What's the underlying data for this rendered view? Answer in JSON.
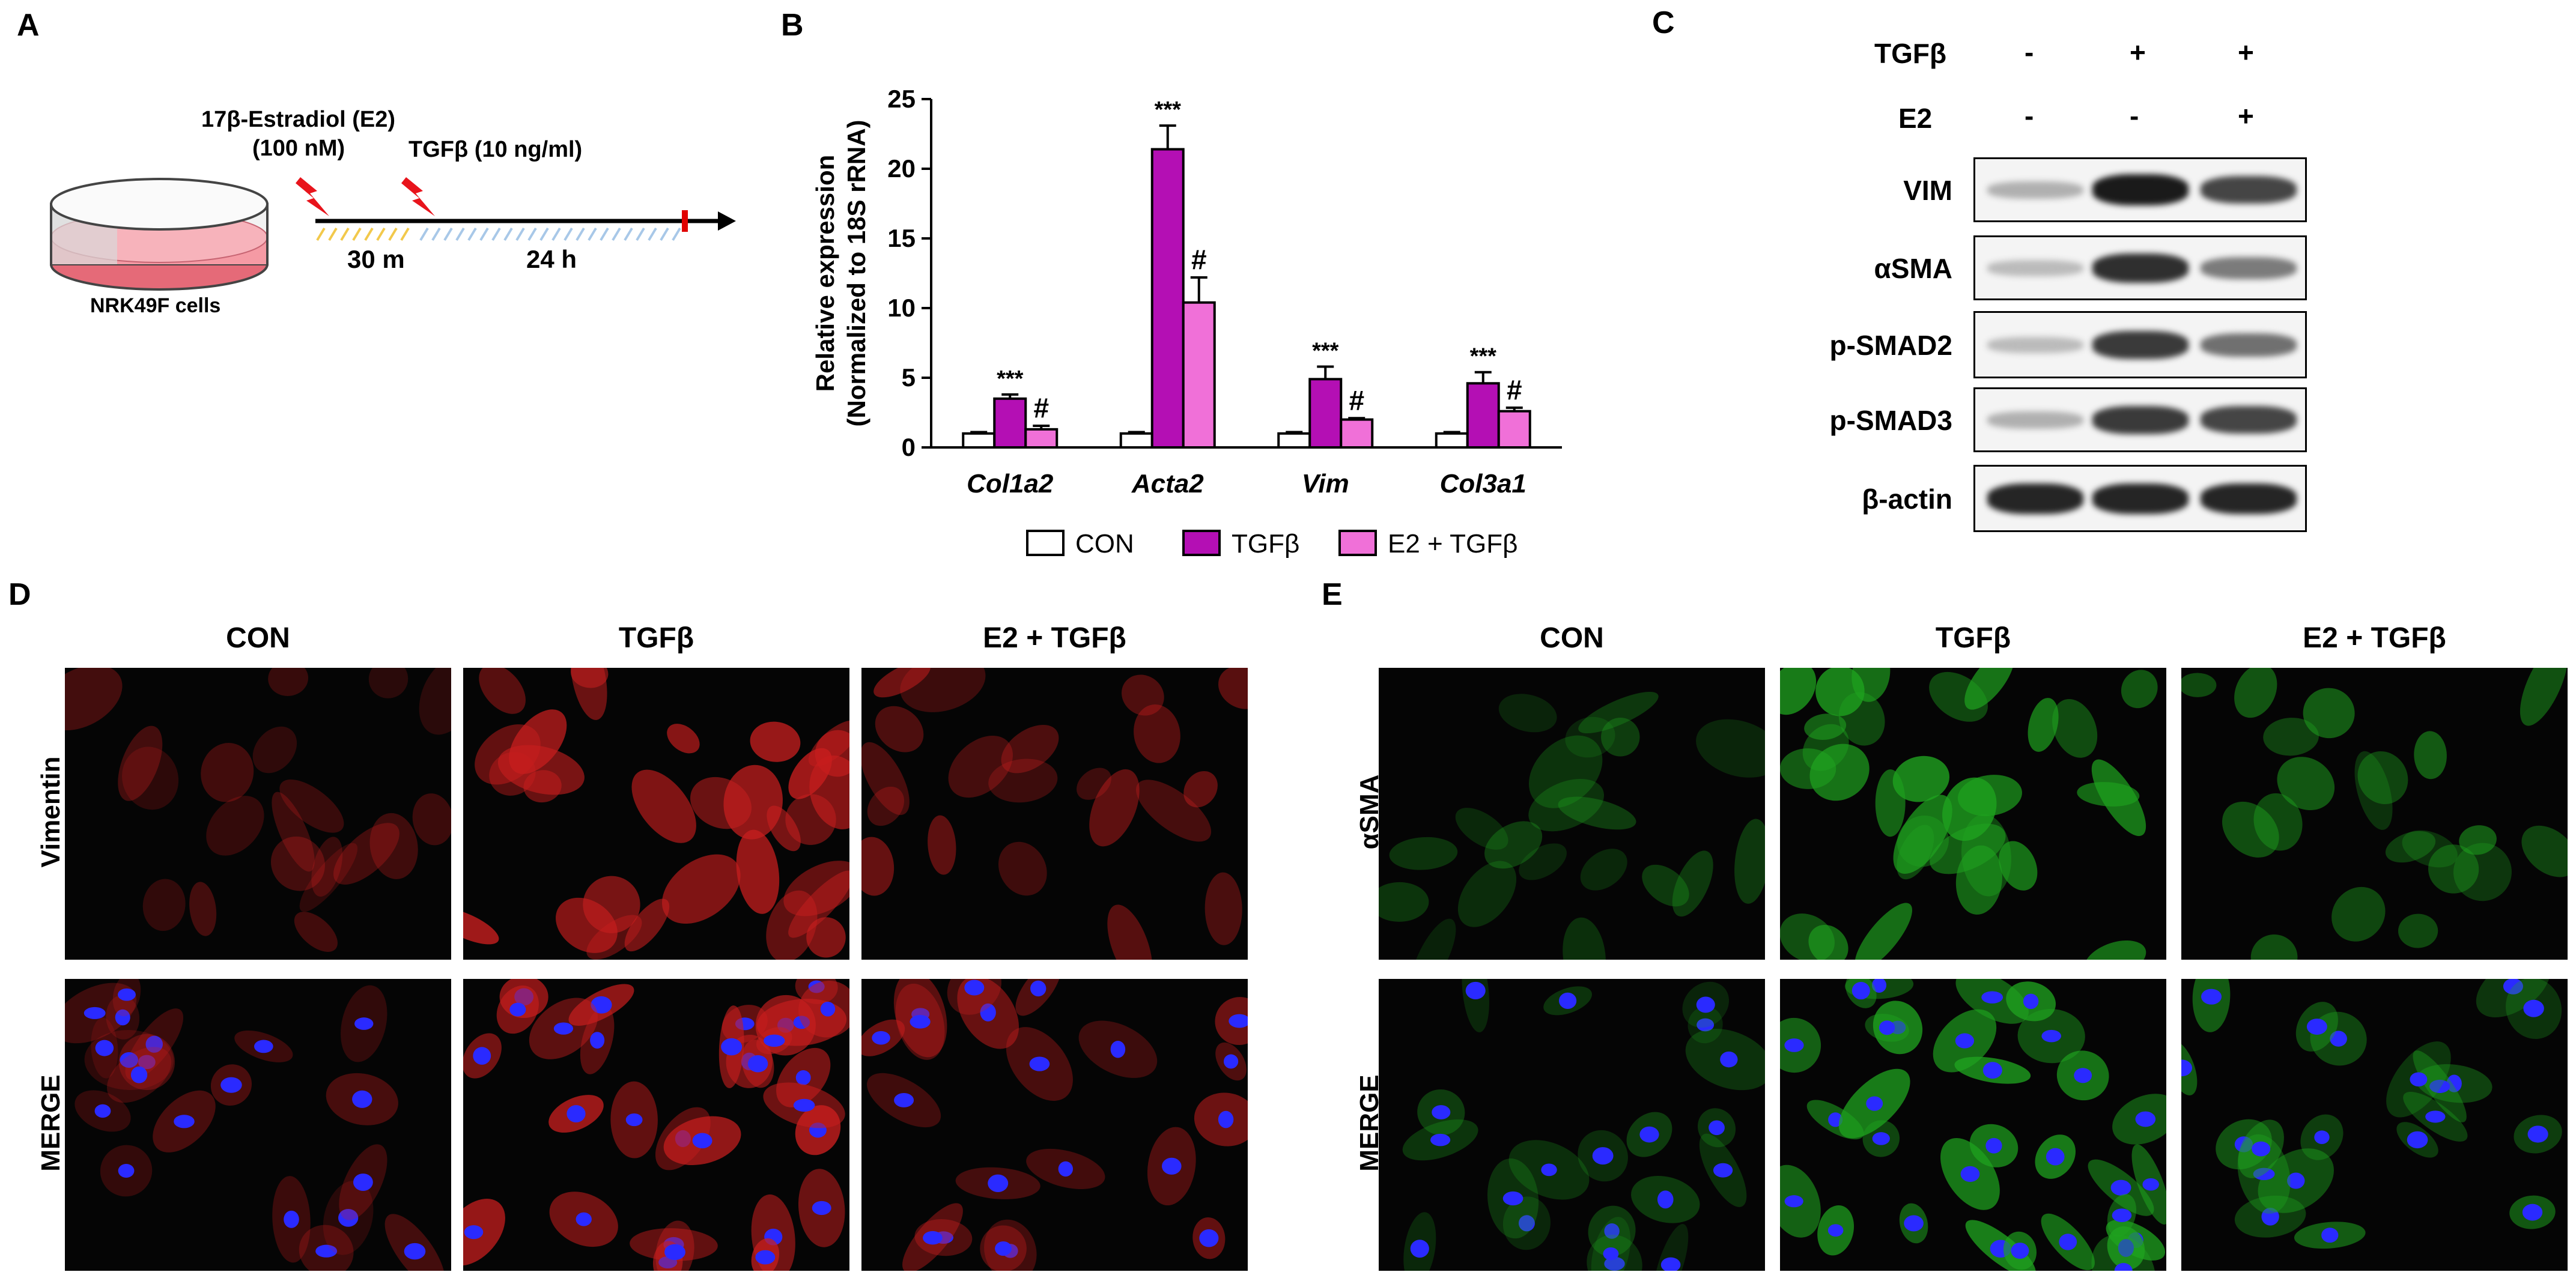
{
  "panels": {
    "a": "A",
    "b": "B",
    "c": "C",
    "d": "D",
    "e": "E"
  },
  "panel_a": {
    "e2_line1": "17β-Estradiol (E2)",
    "e2_line2": "(100 nM)",
    "tgfb_label": "TGFβ (10 ng/ml)",
    "time1": "30 m",
    "time2": "24 h",
    "cells_label": "NRK49F cells"
  },
  "chart_data": {
    "type": "bar",
    "categories": [
      "Col1a2",
      "Acta2",
      "Vim",
      "Col3a1"
    ],
    "series": [
      {
        "name": "CON",
        "values": [
          1.0,
          1.0,
          1.0,
          1.0
        ],
        "errors": [
          0.1,
          0.1,
          0.1,
          0.1
        ],
        "color": "#ffffff",
        "annotations": [
          "",
          "",
          "",
          ""
        ]
      },
      {
        "name": "TGFβ",
        "values": [
          3.5,
          21.4,
          4.9,
          4.6
        ],
        "errors": [
          0.3,
          1.7,
          0.9,
          0.8
        ],
        "color": "#b40fb4",
        "annotations": [
          "***",
          "***",
          "***",
          "***"
        ]
      },
      {
        "name": "E2 + TGFβ",
        "values": [
          1.3,
          10.4,
          2.0,
          2.6
        ],
        "errors": [
          0.25,
          1.8,
          0.1,
          0.25
        ],
        "color": "#f070d8",
        "annotations": [
          "#",
          "#",
          "#",
          "#"
        ]
      }
    ],
    "ylabel_line1": "Relative expression",
    "ylabel_line2": "(Normalized to 18S rRNA)",
    "ylim": [
      0,
      25
    ],
    "yticks": [
      "0",
      "5",
      "10",
      "15",
      "20",
      "25"
    ],
    "legend_position": "bottom"
  },
  "western": {
    "tgfb_label": "TGFβ",
    "e2_label": "E2",
    "tgfb_signs": [
      "-",
      "+",
      "+"
    ],
    "e2_signs": [
      "-",
      "-",
      "+"
    ],
    "rows": [
      {
        "label": "VIM",
        "intensities": [
          0.25,
          0.95,
          0.75
        ]
      },
      {
        "label": "αSMA",
        "intensities": [
          0.2,
          0.85,
          0.5
        ]
      },
      {
        "label": "p-SMAD2",
        "intensities": [
          0.2,
          0.8,
          0.55
        ]
      },
      {
        "label": "p-SMAD3",
        "intensities": [
          0.25,
          0.8,
          0.75
        ]
      },
      {
        "label": "β-actin",
        "intensities": [
          0.9,
          0.9,
          0.9
        ]
      }
    ]
  },
  "panel_d": {
    "columns": [
      "CON",
      "TGFβ",
      "E2 + TGFβ"
    ],
    "rows": [
      "Vimentin",
      "MERGE"
    ],
    "stain_color": "#c81e1e"
  },
  "panel_e": {
    "columns": [
      "CON",
      "TGFβ",
      "E2 + TGFβ"
    ],
    "rows": [
      "αSMA",
      "MERGE"
    ],
    "stain_color": "#1fa31f"
  },
  "nucleus_color": "#2a2aff"
}
